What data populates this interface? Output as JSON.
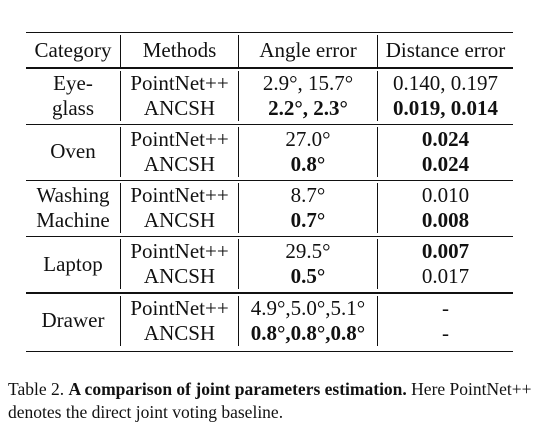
{
  "table": {
    "headers": [
      "Category",
      "Methods",
      "Angle error",
      "Distance error"
    ],
    "groups": [
      {
        "category": [
          "Eye-",
          "glass"
        ],
        "rows": [
          {
            "method": "PointNet++",
            "angle": "2.9°, 15.7°",
            "angle_bold": false,
            "distance": "0.140, 0.197",
            "distance_bold": false
          },
          {
            "method": "ANCSH",
            "angle": "2.2°, 2.3°",
            "angle_bold": true,
            "distance": "0.019, 0.014",
            "distance_bold": true
          }
        ]
      },
      {
        "category": [
          "Oven"
        ],
        "rows": [
          {
            "method": "PointNet++",
            "angle": "27.0°",
            "angle_bold": false,
            "distance": "0.024",
            "distance_bold": true
          },
          {
            "method": "ANCSH",
            "angle": "0.8°",
            "angle_bold": true,
            "distance": "0.024",
            "distance_bold": true
          }
        ]
      },
      {
        "category": [
          "Washing",
          "Machine"
        ],
        "rows": [
          {
            "method": "PointNet++",
            "angle": "8.7°",
            "angle_bold": false,
            "distance": "0.010",
            "distance_bold": false
          },
          {
            "method": "ANCSH",
            "angle": "0.7°",
            "angle_bold": true,
            "distance": "0.008",
            "distance_bold": true
          }
        ]
      },
      {
        "category": [
          "Laptop"
        ],
        "rows": [
          {
            "method": "PointNet++",
            "angle": "29.5°",
            "angle_bold": false,
            "distance": "0.007",
            "distance_bold": true
          },
          {
            "method": "ANCSH",
            "angle": "0.5°",
            "angle_bold": true,
            "distance": "0.017",
            "distance_bold": false
          }
        ]
      },
      {
        "category": [
          "Drawer"
        ],
        "rows": [
          {
            "method": "PointNet++",
            "angle": "4.9°,5.0°,5.1°",
            "angle_bold": false,
            "distance": "-",
            "distance_bold": false
          },
          {
            "method": "ANCSH",
            "angle": "0.8°,0.8°,0.8°",
            "angle_bold": true,
            "distance": "-",
            "distance_bold": false
          }
        ]
      }
    ]
  },
  "caption": {
    "label": "Table 2.",
    "bold_text": "A comparison of joint parameters estimation.",
    "rest": "Here PointNet++ denotes the direct joint voting baseline."
  }
}
